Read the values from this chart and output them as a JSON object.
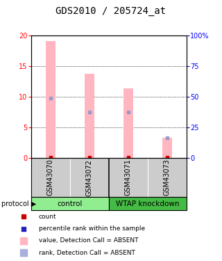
{
  "title": "GDS2010 / 205724_at",
  "samples": [
    "GSM43070",
    "GSM43072",
    "GSM43071",
    "GSM43073"
  ],
  "bar_values": [
    19.0,
    13.7,
    11.3,
    3.3
  ],
  "rank_values": [
    9.8,
    7.5,
    7.5,
    3.3
  ],
  "count_values": [
    0.15,
    0.15,
    0.15,
    0.15
  ],
  "bar_color": "#ffb6c1",
  "rank_color": "#9999cc",
  "count_color": "#cc0000",
  "ylim_left": [
    0,
    20
  ],
  "ylim_right": [
    0,
    100
  ],
  "yticks_left": [
    0,
    5,
    10,
    15,
    20
  ],
  "yticks_right": [
    0,
    25,
    50,
    75,
    100
  ],
  "ytick_labels_right": [
    "0",
    "25",
    "50",
    "75",
    "100%"
  ],
  "bar_width": 0.25,
  "sample_bg_color": "#cccccc",
  "ctrl_color": "#90EE90",
  "wtap_color": "#44bb44",
  "title_fontsize": 10,
  "tick_fontsize": 7,
  "sample_fontsize": 7,
  "group_fontsize": 7.5,
  "legend_fontsize": 6.5
}
